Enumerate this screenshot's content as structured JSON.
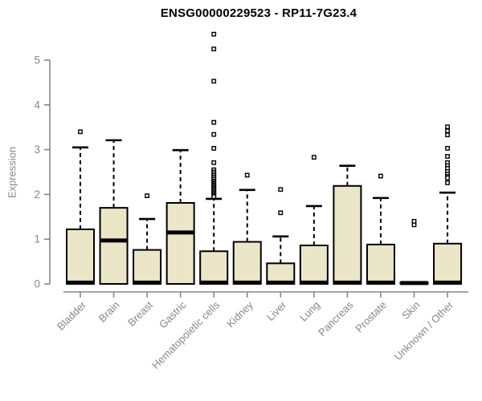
{
  "chart_data": {
    "type": "boxplot",
    "title": "ENSG00000229523 - RP11-7G23.4",
    "ylabel": "Expression",
    "xlabel": "",
    "ylim": [
      0,
      5.75
    ],
    "yticks": [
      0,
      1,
      2,
      3,
      4,
      5
    ],
    "grid": false,
    "legend": "none",
    "categories": [
      "Bladder",
      "Brain",
      "Breast",
      "Gastric",
      "Hematopoietic cells",
      "Kidney",
      "Liver",
      "Lung",
      "Pancreas",
      "Prostate",
      "Skin",
      "Unknown / Other"
    ],
    "series": [
      {
        "name": "Bladder",
        "q1": 0,
        "median": 0.03,
        "q3": 1.22,
        "whisker_low": 0,
        "whisker_high": 3.05,
        "outliers": [
          3.4
        ]
      },
      {
        "name": "Brain",
        "q1": 0,
        "median": 0.97,
        "q3": 1.7,
        "whisker_low": 0,
        "whisker_high": 3.21,
        "outliers": []
      },
      {
        "name": "Breast",
        "q1": 0,
        "median": 0.03,
        "q3": 0.76,
        "whisker_low": 0,
        "whisker_high": 1.45,
        "outliers": [
          1.97
        ]
      },
      {
        "name": "Gastric",
        "q1": 0,
        "median": 1.15,
        "q3": 1.81,
        "whisker_low": 0,
        "whisker_high": 2.99,
        "outliers": []
      },
      {
        "name": "Hematopoietic cells",
        "q1": 0,
        "median": 0.03,
        "q3": 0.73,
        "whisker_low": 0,
        "whisker_high": 1.9,
        "outliers": [
          5.58,
          5.25,
          4.53,
          3.61,
          3.34,
          3.03,
          2.71,
          2.55,
          2.5,
          2.46,
          2.42,
          2.38,
          2.34,
          2.3,
          2.27,
          2.24,
          2.21,
          2.18,
          2.15,
          2.12,
          2.09,
          2.06,
          2.03,
          2.0,
          1.97,
          1.95
        ]
      },
      {
        "name": "Kidney",
        "q1": 0,
        "median": 0.03,
        "q3": 0.94,
        "whisker_low": 0,
        "whisker_high": 2.1,
        "outliers": [
          2.43
        ]
      },
      {
        "name": "Liver",
        "q1": 0,
        "median": 0.03,
        "q3": 0.46,
        "whisker_low": 0,
        "whisker_high": 1.06,
        "outliers": [
          2.11,
          1.59
        ]
      },
      {
        "name": "Lung",
        "q1": 0,
        "median": 0.03,
        "q3": 0.86,
        "whisker_low": 0,
        "whisker_high": 1.74,
        "outliers": [
          2.83
        ]
      },
      {
        "name": "Pancreas",
        "q1": 0,
        "median": 0.03,
        "q3": 2.19,
        "whisker_low": 0,
        "whisker_high": 2.64,
        "outliers": []
      },
      {
        "name": "Prostate",
        "q1": 0,
        "median": 0.03,
        "q3": 0.88,
        "whisker_low": 0,
        "whisker_high": 1.92,
        "outliers": [
          2.41
        ]
      },
      {
        "name": "Skin",
        "q1": 0,
        "median": 0.02,
        "q3": 0.03,
        "whisker_low": 0,
        "whisker_high": 0.03,
        "outliers": [
          1.4,
          1.32
        ]
      },
      {
        "name": "Unknown / Other",
        "q1": 0,
        "median": 0.03,
        "q3": 0.9,
        "whisker_low": 0,
        "whisker_high": 2.04,
        "outliers": [
          3.51,
          3.42,
          3.33,
          3.03,
          2.85,
          2.71,
          2.64,
          2.58,
          2.51,
          2.45,
          2.4,
          2.37,
          2.26
        ]
      }
    ],
    "colors": {
      "box_fill": "#ebe6c8",
      "box_border": "#000000",
      "median": "#000000",
      "whisker": "#000000",
      "outlier_fill": "#ffffff",
      "outlier_border": "#000000",
      "axis": "#878787",
      "tick_label": "#878787",
      "title": "#000000"
    }
  }
}
